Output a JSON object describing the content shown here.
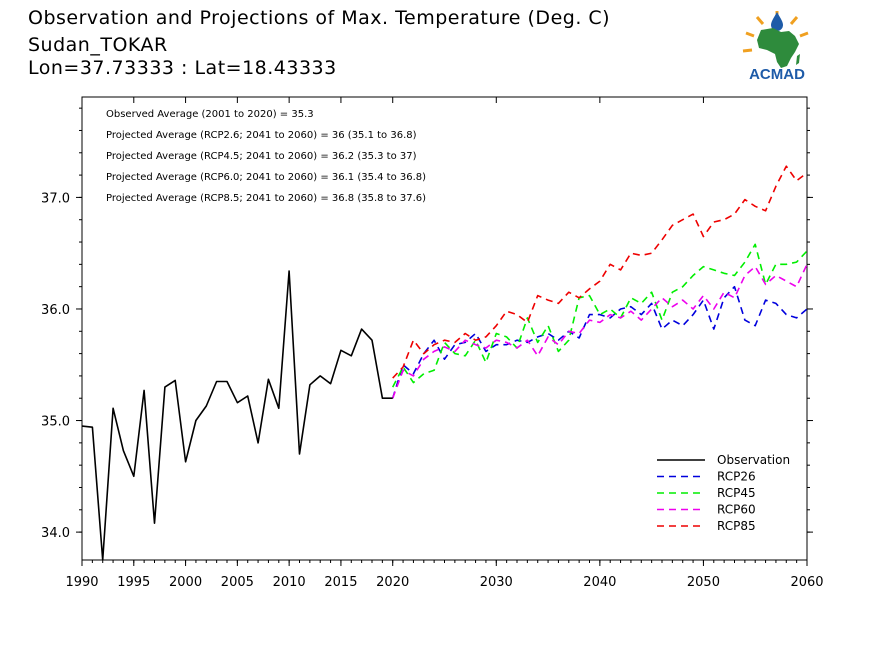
{
  "header": {
    "title": "Observation and Projections of Max. Temperature (Deg. C)",
    "station": "Sudan_TOKAR",
    "coords": "Lon=37.73333 : Lat=18.43333"
  },
  "logo": {
    "text": "ACMAD",
    "icon": "africa-map-logo-icon",
    "colors": {
      "africa": "#2e8b3c",
      "sun": "#f0a020",
      "drop": "#1e5ba8",
      "text": "#1e5ba8"
    }
  },
  "annotations": [
    "Observed Average (2001 to 2020) = 35.3",
    "Projected Average (RCP2.6; 2041 to 2060) = 36 (35.1 to 36.8)",
    "Projected Average (RCP4.5; 2041 to 2060) = 36.2 (35.3 to 37)",
    "Projected Average (RCP6.0; 2041 to 2060) = 36.1 (35.4 to 36.8)",
    "Projected Average (RCP8.5; 2041 to 2060) = 36.8 (35.8 to 37.6)"
  ],
  "chart_data": {
    "type": "line",
    "xlim": [
      1990,
      2060
    ],
    "ylim": [
      33.75,
      37.9
    ],
    "x_ticks": [
      1990,
      1995,
      2000,
      2005,
      2010,
      2015,
      2020,
      2030,
      2040,
      2050,
      2060
    ],
    "x_tick_labels": [
      "1990",
      "1995",
      "2000",
      "2005",
      "2010",
      "2015",
      "2020",
      "2030",
      "2040",
      "2050",
      "2060"
    ],
    "y_ticks": [
      34.0,
      35.0,
      36.0,
      37.0
    ],
    "y_tick_labels": [
      "34.0",
      "35.0",
      "36.0",
      "37.0"
    ],
    "legend_position": "bottom-right",
    "series": [
      {
        "name": "Observation",
        "color": "#000000",
        "dash": "solid",
        "x": [
          1990,
          1991,
          1992,
          1993,
          1994,
          1995,
          1996,
          1997,
          1998,
          1999,
          2000,
          2001,
          2002,
          2003,
          2004,
          2005,
          2006,
          2007,
          2008,
          2009,
          2010,
          2011,
          2012,
          2013,
          2014,
          2015,
          2016,
          2017,
          2018,
          2019,
          2020
        ],
        "y": [
          34.95,
          34.94,
          33.75,
          35.11,
          34.73,
          34.5,
          35.27,
          34.08,
          35.3,
          35.36,
          34.63,
          35.0,
          35.13,
          35.35,
          35.35,
          35.16,
          35.22,
          34.8,
          35.37,
          35.11,
          36.34,
          34.7,
          35.32,
          35.4,
          35.33,
          35.63,
          35.58,
          35.82,
          35.72,
          35.2,
          35.2
        ]
      },
      {
        "name": "RCP26",
        "color": "#0000dd",
        "dash": "dashed",
        "x": [
          2020,
          2021,
          2022,
          2023,
          2024,
          2025,
          2026,
          2027,
          2028,
          2029,
          2030,
          2031,
          2032,
          2033,
          2034,
          2035,
          2036,
          2037,
          2038,
          2039,
          2040,
          2041,
          2042,
          2043,
          2044,
          2045,
          2046,
          2047,
          2048,
          2049,
          2050,
          2051,
          2052,
          2053,
          2054,
          2055,
          2056,
          2057,
          2058,
          2059,
          2060
        ],
        "y": [
          35.2,
          35.5,
          35.42,
          35.6,
          35.72,
          35.55,
          35.68,
          35.7,
          35.78,
          35.62,
          35.68,
          35.68,
          35.72,
          35.7,
          35.75,
          35.78,
          35.72,
          35.8,
          35.74,
          35.95,
          35.95,
          35.92,
          36.0,
          36.02,
          35.95,
          36.05,
          35.82,
          35.9,
          35.85,
          35.95,
          36.08,
          35.82,
          36.1,
          36.2,
          35.9,
          35.85,
          36.08,
          36.05,
          35.95,
          35.92,
          36.0
        ]
      },
      {
        "name": "RCP45",
        "color": "#00ee00",
        "dash": "dashed",
        "x": [
          2020,
          2021,
          2022,
          2023,
          2024,
          2025,
          2026,
          2027,
          2028,
          2029,
          2030,
          2031,
          2032,
          2033,
          2034,
          2035,
          2036,
          2037,
          2038,
          2039,
          2040,
          2041,
          2042,
          2043,
          2044,
          2045,
          2046,
          2047,
          2048,
          2049,
          2050,
          2051,
          2052,
          2053,
          2054,
          2055,
          2056,
          2057,
          2058,
          2059,
          2060
        ],
        "y": [
          35.3,
          35.48,
          35.34,
          35.42,
          35.45,
          35.7,
          35.6,
          35.58,
          35.72,
          35.52,
          35.78,
          35.75,
          35.65,
          35.92,
          35.7,
          35.85,
          35.62,
          35.72,
          36.1,
          36.12,
          35.95,
          36.0,
          35.92,
          36.1,
          36.05,
          36.15,
          35.9,
          36.15,
          36.2,
          36.3,
          36.38,
          36.35,
          36.32,
          36.3,
          36.42,
          36.58,
          36.22,
          36.4,
          36.4,
          36.42,
          36.52
        ]
      },
      {
        "name": "RCP60",
        "color": "#ee00ee",
        "dash": "dashed",
        "x": [
          2020,
          2021,
          2022,
          2023,
          2024,
          2025,
          2026,
          2027,
          2028,
          2029,
          2030,
          2031,
          2032,
          2033,
          2034,
          2035,
          2036,
          2037,
          2038,
          2039,
          2040,
          2041,
          2042,
          2043,
          2044,
          2045,
          2046,
          2047,
          2048,
          2049,
          2050,
          2051,
          2052,
          2053,
          2054,
          2055,
          2056,
          2057,
          2058,
          2059,
          2060
        ],
        "y": [
          35.2,
          35.45,
          35.4,
          35.55,
          35.62,
          35.66,
          35.62,
          35.72,
          35.68,
          35.65,
          35.72,
          35.7,
          35.65,
          35.72,
          35.58,
          35.75,
          35.68,
          35.8,
          35.78,
          35.9,
          35.88,
          35.95,
          35.92,
          35.98,
          35.9,
          36.0,
          36.1,
          36.02,
          36.08,
          36.0,
          36.12,
          36.0,
          36.15,
          36.1,
          36.3,
          36.38,
          36.22,
          36.3,
          36.25,
          36.2,
          36.4
        ]
      },
      {
        "name": "RCP85",
        "color": "#ee0000",
        "dash": "dashed",
        "x": [
          2020,
          2021,
          2022,
          2023,
          2024,
          2025,
          2026,
          2027,
          2028,
          2029,
          2030,
          2031,
          2032,
          2033,
          2034,
          2035,
          2036,
          2037,
          2038,
          2039,
          2040,
          2041,
          2042,
          2043,
          2044,
          2045,
          2046,
          2047,
          2048,
          2049,
          2050,
          2051,
          2052,
          2053,
          2054,
          2055,
          2056,
          2057,
          2058,
          2059,
          2060
        ],
        "y": [
          35.38,
          35.48,
          35.72,
          35.6,
          35.68,
          35.72,
          35.7,
          35.78,
          35.72,
          35.75,
          35.85,
          35.98,
          35.95,
          35.88,
          36.12,
          36.08,
          36.05,
          36.15,
          36.1,
          36.18,
          36.25,
          36.4,
          36.35,
          36.5,
          36.48,
          36.5,
          36.62,
          36.75,
          36.8,
          36.85,
          36.65,
          36.78,
          36.8,
          36.85,
          36.98,
          36.92,
          36.88,
          37.1,
          37.28,
          37.15,
          37.22
        ]
      }
    ]
  }
}
